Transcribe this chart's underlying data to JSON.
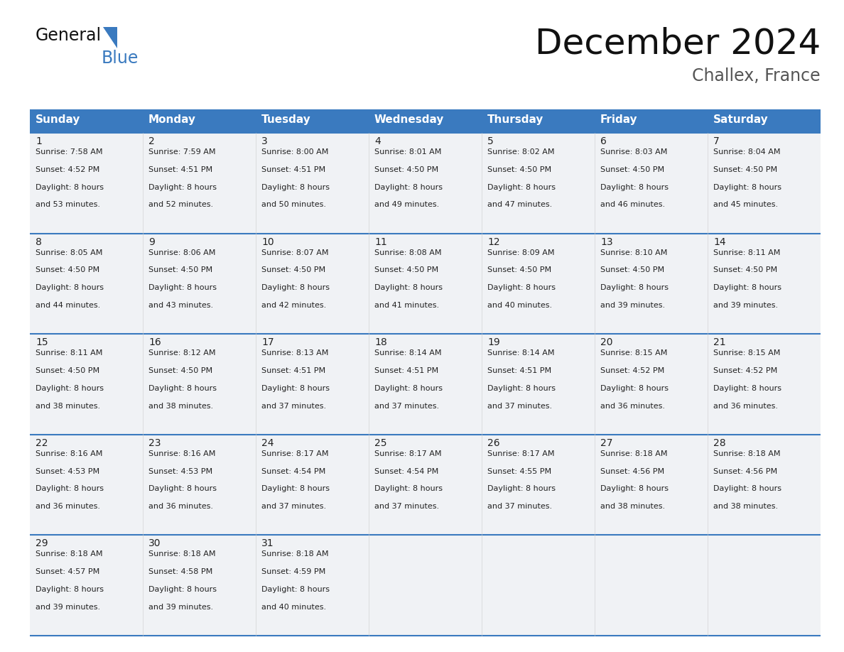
{
  "title": "December 2024",
  "subtitle": "Challex, France",
  "header_color": "#3a7abf",
  "header_text_color": "#ffffff",
  "cell_bg_color": "#f0f2f5",
  "border_color": "#3a7abf",
  "text_color": "#222222",
  "days_of_week": [
    "Sunday",
    "Monday",
    "Tuesday",
    "Wednesday",
    "Thursday",
    "Friday",
    "Saturday"
  ],
  "weeks": [
    [
      {
        "day": 1,
        "sunrise": "7:58 AM",
        "sunset": "4:52 PM",
        "daylight_hours": 8,
        "daylight_minutes": 53
      },
      {
        "day": 2,
        "sunrise": "7:59 AM",
        "sunset": "4:51 PM",
        "daylight_hours": 8,
        "daylight_minutes": 52
      },
      {
        "day": 3,
        "sunrise": "8:00 AM",
        "sunset": "4:51 PM",
        "daylight_hours": 8,
        "daylight_minutes": 50
      },
      {
        "day": 4,
        "sunrise": "8:01 AM",
        "sunset": "4:50 PM",
        "daylight_hours": 8,
        "daylight_minutes": 49
      },
      {
        "day": 5,
        "sunrise": "8:02 AM",
        "sunset": "4:50 PM",
        "daylight_hours": 8,
        "daylight_minutes": 47
      },
      {
        "day": 6,
        "sunrise": "8:03 AM",
        "sunset": "4:50 PM",
        "daylight_hours": 8,
        "daylight_minutes": 46
      },
      {
        "day": 7,
        "sunrise": "8:04 AM",
        "sunset": "4:50 PM",
        "daylight_hours": 8,
        "daylight_minutes": 45
      }
    ],
    [
      {
        "day": 8,
        "sunrise": "8:05 AM",
        "sunset": "4:50 PM",
        "daylight_hours": 8,
        "daylight_minutes": 44
      },
      {
        "day": 9,
        "sunrise": "8:06 AM",
        "sunset": "4:50 PM",
        "daylight_hours": 8,
        "daylight_minutes": 43
      },
      {
        "day": 10,
        "sunrise": "8:07 AM",
        "sunset": "4:50 PM",
        "daylight_hours": 8,
        "daylight_minutes": 42
      },
      {
        "day": 11,
        "sunrise": "8:08 AM",
        "sunset": "4:50 PM",
        "daylight_hours": 8,
        "daylight_minutes": 41
      },
      {
        "day": 12,
        "sunrise": "8:09 AM",
        "sunset": "4:50 PM",
        "daylight_hours": 8,
        "daylight_minutes": 40
      },
      {
        "day": 13,
        "sunrise": "8:10 AM",
        "sunset": "4:50 PM",
        "daylight_hours": 8,
        "daylight_minutes": 39
      },
      {
        "day": 14,
        "sunrise": "8:11 AM",
        "sunset": "4:50 PM",
        "daylight_hours": 8,
        "daylight_minutes": 39
      }
    ],
    [
      {
        "day": 15,
        "sunrise": "8:11 AM",
        "sunset": "4:50 PM",
        "daylight_hours": 8,
        "daylight_minutes": 38
      },
      {
        "day": 16,
        "sunrise": "8:12 AM",
        "sunset": "4:50 PM",
        "daylight_hours": 8,
        "daylight_minutes": 38
      },
      {
        "day": 17,
        "sunrise": "8:13 AM",
        "sunset": "4:51 PM",
        "daylight_hours": 8,
        "daylight_minutes": 37
      },
      {
        "day": 18,
        "sunrise": "8:14 AM",
        "sunset": "4:51 PM",
        "daylight_hours": 8,
        "daylight_minutes": 37
      },
      {
        "day": 19,
        "sunrise": "8:14 AM",
        "sunset": "4:51 PM",
        "daylight_hours": 8,
        "daylight_minutes": 37
      },
      {
        "day": 20,
        "sunrise": "8:15 AM",
        "sunset": "4:52 PM",
        "daylight_hours": 8,
        "daylight_minutes": 36
      },
      {
        "day": 21,
        "sunrise": "8:15 AM",
        "sunset": "4:52 PM",
        "daylight_hours": 8,
        "daylight_minutes": 36
      }
    ],
    [
      {
        "day": 22,
        "sunrise": "8:16 AM",
        "sunset": "4:53 PM",
        "daylight_hours": 8,
        "daylight_minutes": 36
      },
      {
        "day": 23,
        "sunrise": "8:16 AM",
        "sunset": "4:53 PM",
        "daylight_hours": 8,
        "daylight_minutes": 36
      },
      {
        "day": 24,
        "sunrise": "8:17 AM",
        "sunset": "4:54 PM",
        "daylight_hours": 8,
        "daylight_minutes": 37
      },
      {
        "day": 25,
        "sunrise": "8:17 AM",
        "sunset": "4:54 PM",
        "daylight_hours": 8,
        "daylight_minutes": 37
      },
      {
        "day": 26,
        "sunrise": "8:17 AM",
        "sunset": "4:55 PM",
        "daylight_hours": 8,
        "daylight_minutes": 37
      },
      {
        "day": 27,
        "sunrise": "8:18 AM",
        "sunset": "4:56 PM",
        "daylight_hours": 8,
        "daylight_minutes": 38
      },
      {
        "day": 28,
        "sunrise": "8:18 AM",
        "sunset": "4:56 PM",
        "daylight_hours": 8,
        "daylight_minutes": 38
      }
    ],
    [
      {
        "day": 29,
        "sunrise": "8:18 AM",
        "sunset": "4:57 PM",
        "daylight_hours": 8,
        "daylight_minutes": 39
      },
      {
        "day": 30,
        "sunrise": "8:18 AM",
        "sunset": "4:58 PM",
        "daylight_hours": 8,
        "daylight_minutes": 39
      },
      {
        "day": 31,
        "sunrise": "8:18 AM",
        "sunset": "4:59 PM",
        "daylight_hours": 8,
        "daylight_minutes": 40
      },
      null,
      null,
      null,
      null
    ]
  ]
}
